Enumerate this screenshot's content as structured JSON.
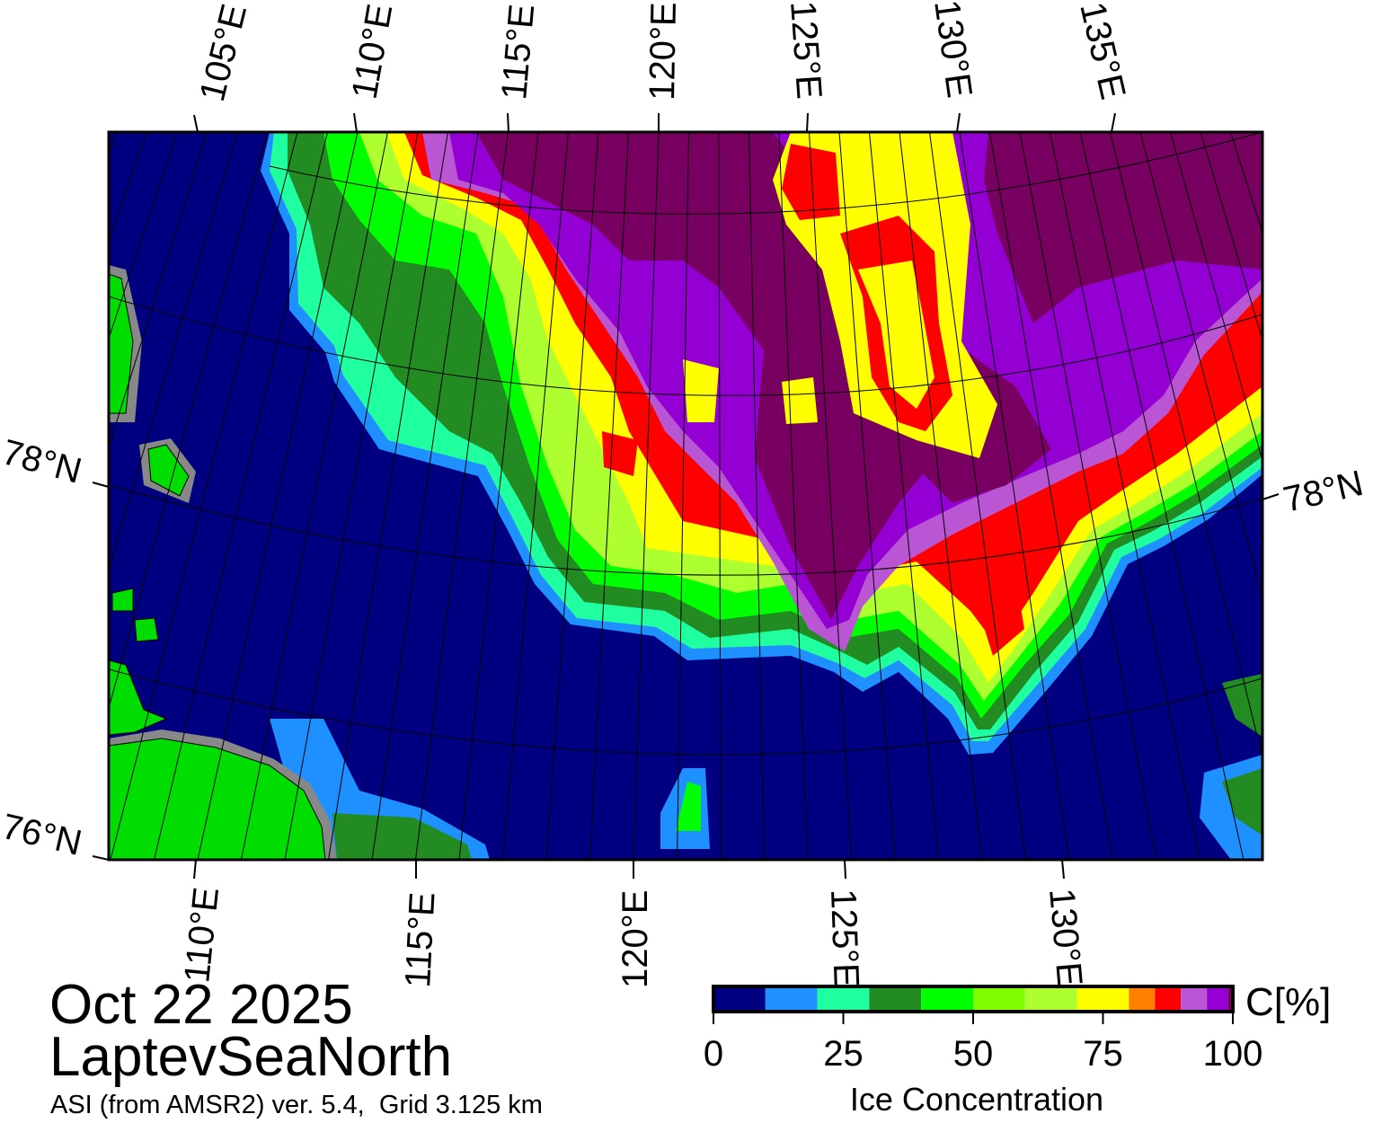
{
  "title": {
    "date": "Oct 22 2025",
    "region": "LaptevSeaNorth",
    "product": "ASI (from AMSR2) ver. 5.4,  Grid 3.125 km"
  },
  "map": {
    "type": "sea-ice-concentration-map",
    "projection": "polar stereographic",
    "graticule": true,
    "top_lon_labels": [
      "105°E",
      "110°E",
      "115°E",
      "120°E",
      "125°E",
      "130°E",
      "135°E"
    ],
    "bottom_lon_labels": [
      "110°E",
      "115°E",
      "120°E",
      "125°E",
      "130°E"
    ],
    "left_lat_labels": [
      "78°N",
      "76°N"
    ],
    "right_lat_labels": [
      "78°N"
    ],
    "colors": {
      "open_water": "#000080",
      "land": "#00dd00",
      "coast_gray": "#888888",
      "max_ice": "#780060"
    }
  },
  "colorbar": {
    "label": "Ice Concentration",
    "unit": "C[%]",
    "range": [
      0,
      100
    ],
    "tick_labels": [
      "0",
      "25",
      "50",
      "75",
      "100"
    ],
    "ticks": [
      0,
      25,
      50,
      75,
      100
    ],
    "segments": [
      {
        "from": 0,
        "to": 10,
        "color": "#000080"
      },
      {
        "from": 10,
        "to": 20,
        "color": "#1e90ff"
      },
      {
        "from": 20,
        "to": 30,
        "color": "#20ffa0"
      },
      {
        "from": 30,
        "to": 40,
        "color": "#228b22"
      },
      {
        "from": 40,
        "to": 50,
        "color": "#00ff00"
      },
      {
        "from": 50,
        "to": 60,
        "color": "#7fff00"
      },
      {
        "from": 60,
        "to": 70,
        "color": "#adff2f"
      },
      {
        "from": 70,
        "to": 80,
        "color": "#ffff00"
      },
      {
        "from": 80,
        "to": 85,
        "color": "#ff8000"
      },
      {
        "from": 85,
        "to": 90,
        "color": "#ff0000"
      },
      {
        "from": 90,
        "to": 95,
        "color": "#ba55d3"
      },
      {
        "from": 95,
        "to": 99,
        "color": "#9400d3"
      },
      {
        "from": 99,
        "to": 100,
        "color": "#780060"
      }
    ]
  }
}
